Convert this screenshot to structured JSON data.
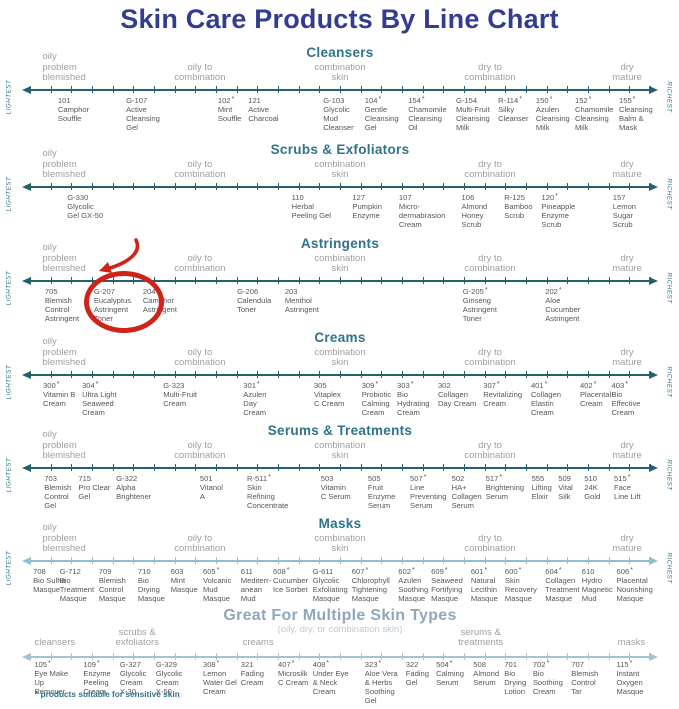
{
  "title": "Skin Care Products By Line Chart",
  "footnote": "* products suitable for sensitive skin",
  "colors": {
    "title_navy": "#333d8f",
    "teal": "#2f7389",
    "axis_dark": "#24606d",
    "axis_masks": "#92bdd2",
    "axis_light": "#a3c2d3",
    "light_header": "#8fa6bb",
    "light_subtitle": "#b9cad9",
    "zone_gray": "#9c9ea1",
    "product_gray": "#54565a",
    "highlight_red": "#cf2318"
  },
  "annotation": {
    "highlighted_product_code": "G-207",
    "shape": "hand-drawn red circle with curved arrow",
    "color": "#cf2318"
  },
  "chart_data": {
    "type": "line",
    "axis": {
      "left_label": "LIGHTEST",
      "right_label": "RICHEST",
      "x_range": [
        0,
        100
      ]
    },
    "zone_sets": {
      "standard": [
        {
          "label": "oily\nproblem\nblemished",
          "pos": 5.5,
          "align": "left"
        },
        {
          "label": "oily to\ncombination",
          "pos": 27.4
        },
        {
          "label": "combination\nskin",
          "pos": 50
        },
        {
          "label": "dry to\ncombination",
          "pos": 74.2
        },
        {
          "label": "dry\nmature",
          "pos": 96.3
        }
      ],
      "multi": [
        {
          "label": "cleansers",
          "pos": 4
        },
        {
          "label": "scrubs &\nexfoliators",
          "pos": 17.3
        },
        {
          "label": "creams",
          "pos": 36.8
        },
        {
          "label": "serums &\ntreatments",
          "pos": 72.7
        },
        {
          "label": "masks",
          "pos": 97
        }
      ]
    },
    "sections": [
      {
        "id": "cleansers",
        "title": "Cleansers",
        "variant": "",
        "zone_set": "standard",
        "edge_labels": true,
        "products": [
          {
            "code": "101",
            "name": "Camphor\nSouffle",
            "pos": 4.5
          },
          {
            "code": "G-107",
            "name": "Active\nCleansing\nGel",
            "pos": 15.5
          },
          {
            "code": "102",
            "sensitive": true,
            "name": "Mint\nSouffle",
            "pos": 30.3
          },
          {
            "code": "121",
            "name": "Active\nCharcoal",
            "pos": 35.2
          },
          {
            "code": "G-103",
            "name": "Glycolic\nMud\nCleanser",
            "pos": 47.3
          },
          {
            "code": "104",
            "sensitive": true,
            "name": "Gentle\nCleansing\nGel",
            "pos": 54.0
          },
          {
            "code": "154",
            "sensitive": true,
            "name": "Chamomile\nCleansing\nOil",
            "pos": 61.0
          },
          {
            "code": "G-154",
            "name": "Multi-Fruit\nCleansing\nMilk",
            "pos": 68.7
          },
          {
            "code": "R-114",
            "sensitive": true,
            "name": "Silky\nCleanser",
            "pos": 75.5
          },
          {
            "code": "150",
            "sensitive": true,
            "name": "Azulen\nCleansing\nMilk",
            "pos": 81.6
          },
          {
            "code": "152",
            "sensitive": true,
            "name": "Chamomile\nCleansing\nMilk",
            "pos": 87.9
          },
          {
            "code": "155",
            "sensitive": true,
            "name": "Cleansing\nBalm &\nMask",
            "pos": 95.0
          }
        ]
      },
      {
        "id": "scrubs-exfoliators",
        "title": "Scrubs & Exfoliators",
        "variant": "",
        "zone_set": "standard",
        "edge_labels": true,
        "products": [
          {
            "code": "G-330",
            "name": "Glycolic\nGel GX-50",
            "pos": 6.0
          },
          {
            "code": "110",
            "name": "Herbal\nPeeling Gel",
            "pos": 42.2
          },
          {
            "code": "127",
            "name": "Pumpkin\nEnzyme",
            "pos": 52.0
          },
          {
            "code": "107",
            "name": "Micro-\ndermabrasion\nCream",
            "pos": 59.5
          },
          {
            "code": "106",
            "name": "Almond\nHoney\nScrub",
            "pos": 69.6
          },
          {
            "code": "R-125",
            "name": "Bamboo\nScrub",
            "pos": 76.5
          },
          {
            "code": "120",
            "sensitive": true,
            "name": "Pineapple\nEnzyme\nScrub",
            "pos": 82.5
          },
          {
            "code": "157",
            "name": "Lemon\nSugar Scrub",
            "pos": 94.0
          }
        ]
      },
      {
        "id": "astringents",
        "title": "Astringents",
        "variant": "",
        "zone_set": "standard",
        "edge_labels": true,
        "products": [
          {
            "code": "705",
            "name": "Blemish\nControl\nAstringent",
            "pos": 2.4
          },
          {
            "code": "G-207",
            "name": "Eucalyptus\nAstringent\nToner",
            "pos": 10.3,
            "highlighted": true
          },
          {
            "code": "204",
            "name": "Camphor\nAstringent",
            "pos": 18.2
          },
          {
            "code": "G-206",
            "name": "Calendula\nToner",
            "pos": 33.4
          },
          {
            "code": "203",
            "name": "Menthol\nAstringent",
            "pos": 41.1
          },
          {
            "code": "G-205",
            "sensitive": true,
            "name": "Ginseng\nAstringent\nToner",
            "pos": 69.8
          },
          {
            "code": "202",
            "sensitive": true,
            "name": "Aloe\nCucumber\nAstringent",
            "pos": 83.1
          }
        ]
      },
      {
        "id": "creams",
        "title": "Creams",
        "variant": "",
        "zone_set": "standard",
        "edge_labels": true,
        "products": [
          {
            "code": "300",
            "sensitive": true,
            "name": "Vitamin B\nCream",
            "pos": 2.1
          },
          {
            "code": "304",
            "sensitive": true,
            "name": "Ultra Light\nSeaweed\nCream",
            "pos": 8.4
          },
          {
            "code": "G-323",
            "name": "Multi-Fruit\nCream",
            "pos": 21.5
          },
          {
            "code": "301",
            "sensitive": true,
            "name": "Azulen\nDay\nCream",
            "pos": 34.4
          },
          {
            "code": "305",
            "name": "Vitaplex\nC Cream",
            "pos": 45.8
          },
          {
            "code": "309",
            "sensitive": true,
            "name": "Probiotic\nCalming\nCream",
            "pos": 53.5
          },
          {
            "code": "303",
            "sensitive": true,
            "name": "Bio\nHydrating\nCream",
            "pos": 59.2
          },
          {
            "code": "302",
            "name": "Collagen\nDay Cream",
            "pos": 65.8
          },
          {
            "code": "307",
            "sensitive": true,
            "name": "Revitalizing\nCream",
            "pos": 73.1
          },
          {
            "code": "401",
            "sensitive": true,
            "name": "Collagen\nElastin\nCream",
            "pos": 80.8
          },
          {
            "code": "402",
            "sensitive": true,
            "name": "Placental\nCream",
            "pos": 88.7
          },
          {
            "code": "403",
            "sensitive": true,
            "name": "Bio\nEffective\nCream",
            "pos": 93.8
          }
        ]
      },
      {
        "id": "serums-treatments",
        "title": "Serums & Treatments",
        "variant": "",
        "zone_set": "standard",
        "edge_labels": true,
        "products": [
          {
            "code": "703",
            "name": "Blemish\nControl\nGel",
            "pos": 2.3
          },
          {
            "code": "715",
            "name": "Pro Clear\nGel",
            "pos": 7.8
          },
          {
            "code": "G-322",
            "name": "Alpha\nBrightener",
            "pos": 13.9
          },
          {
            "code": "501",
            "name": "Vitanol\nA",
            "pos": 27.4
          },
          {
            "code": "R-511",
            "sensitive": true,
            "name": "Skin\nRefining\nConcentrate",
            "pos": 35.0
          },
          {
            "code": "503",
            "name": "Vitamin\nC Serum",
            "pos": 46.9
          },
          {
            "code": "505",
            "name": "Fruit\nEnzyme\nSerum",
            "pos": 54.5
          },
          {
            "code": "507",
            "sensitive": true,
            "name": "Line\nPreventing\nSerum",
            "pos": 61.3
          },
          {
            "code": "502",
            "name": "HA+\nCollagen\nSerum",
            "pos": 68.0
          },
          {
            "code": "517",
            "sensitive": true,
            "name": "Brightening\nSerum",
            "pos": 73.5
          },
          {
            "code": "555",
            "name": "Lifting\nElixir",
            "pos": 80.9
          },
          {
            "code": "509",
            "name": "Vital\nSilk",
            "pos": 85.2
          },
          {
            "code": "510",
            "name": "24K\nGold",
            "pos": 89.4
          },
          {
            "code": "515",
            "sensitive": true,
            "name": "Face\nLine Lift",
            "pos": 94.2
          }
        ]
      },
      {
        "id": "masks",
        "title": "Masks",
        "variant": "masks",
        "zone_set": "standard",
        "edge_labels": true,
        "products": [
          {
            "code": "708",
            "name": "Bio Sulfur\nMasque",
            "pos": 0.5
          },
          {
            "code": "G-712",
            "name": "Bio\nTreatment\nMasque",
            "pos": 4.8
          },
          {
            "code": "709",
            "name": "Blemish\nControl\nMasque",
            "pos": 11.1
          },
          {
            "code": "710",
            "name": "Bio\nDrying\nMasque",
            "pos": 17.4
          },
          {
            "code": "603",
            "name": "Mint\nMasque",
            "pos": 22.7
          },
          {
            "code": "605",
            "sensitive": true,
            "name": "Volcanic\nMud\nMasque",
            "pos": 27.9
          },
          {
            "code": "611",
            "name": "Mediterr-\nanean\nMud",
            "pos": 34.0
          },
          {
            "code": "608",
            "sensitive": true,
            "name": "Cucumber\nIce Sorbet",
            "pos": 39.2
          },
          {
            "code": "G-611",
            "name": "Glycolic\nExfoliating\nMasque",
            "pos": 45.6
          },
          {
            "code": "607",
            "sensitive": true,
            "name": "Chlorophyll\nTightening\nMasque",
            "pos": 51.9
          },
          {
            "code": "602",
            "sensitive": true,
            "name": "Azulen\nSoothing\nMasque",
            "pos": 59.4
          },
          {
            "code": "609",
            "sensitive": true,
            "name": "Seaweed\nFortifying\nMasque",
            "pos": 64.7
          },
          {
            "code": "601",
            "sensitive": true,
            "name": "Natural\nLecithin\nMasque",
            "pos": 71.1
          },
          {
            "code": "600",
            "sensitive": true,
            "name": "Skin\nRecovery\nMasque",
            "pos": 76.6
          },
          {
            "code": "604",
            "sensitive": true,
            "name": "Collagen\nTreatment\nMasque",
            "pos": 83.1
          },
          {
            "code": "610",
            "name": "Hydro\nMagnetic\nMud",
            "pos": 89.0
          },
          {
            "code": "606",
            "sensitive": true,
            "name": "Placental\nNourishing\nMasque",
            "pos": 94.6
          }
        ]
      },
      {
        "id": "multi-skin-types",
        "title": "Great For Multiple Skin Types",
        "subtitle": "(oily, dry, or combination skin)",
        "variant": "light",
        "zone_set": "multi",
        "edge_labels": false,
        "products": [
          {
            "code": "105",
            "sensitive": true,
            "name": "Eye Make\nUp\nRemover",
            "pos": 0.7
          },
          {
            "code": "109",
            "sensitive": true,
            "name": "Enzyme\nPeeling\nCream",
            "pos": 8.6
          },
          {
            "code": "G-327",
            "name": "Glycolic\nCream\nX-30",
            "pos": 14.5
          },
          {
            "code": "G-329",
            "name": "Glycolic\nCream\nX-50",
            "pos": 20.3
          },
          {
            "code": "308",
            "sensitive": true,
            "name": "Lemon\nWater Gel\nCream",
            "pos": 27.9
          },
          {
            "code": "321",
            "name": "Fading\nCream",
            "pos": 34.0
          },
          {
            "code": "407",
            "sensitive": true,
            "name": "Microsilk\nC Cream",
            "pos": 40.0
          },
          {
            "code": "408",
            "sensitive": true,
            "name": "Under Eye\n& Neck\nCream",
            "pos": 45.6
          },
          {
            "code": "323",
            "sensitive": true,
            "name": "Aloe Vera\n& Herbs\nSoothing\nGel",
            "pos": 54.0
          },
          {
            "code": "322",
            "name": "Fading\nGel",
            "pos": 60.6
          },
          {
            "code": "504",
            "sensitive": true,
            "name": "Calming\nSerum",
            "pos": 65.5
          },
          {
            "code": "508",
            "name": "Almond\nSerum",
            "pos": 71.5
          },
          {
            "code": "701",
            "name": "Bio\nDrying\nLotion",
            "pos": 76.5
          },
          {
            "code": "702",
            "sensitive": true,
            "name": "Bio\nSoothing\nCream",
            "pos": 81.1
          },
          {
            "code": "707",
            "name": "Blemish\nControl\nTar",
            "pos": 87.3
          },
          {
            "code": "115",
            "sensitive": true,
            "name": "Instant\nOxygen\nMasque",
            "pos": 94.6
          }
        ]
      }
    ]
  }
}
